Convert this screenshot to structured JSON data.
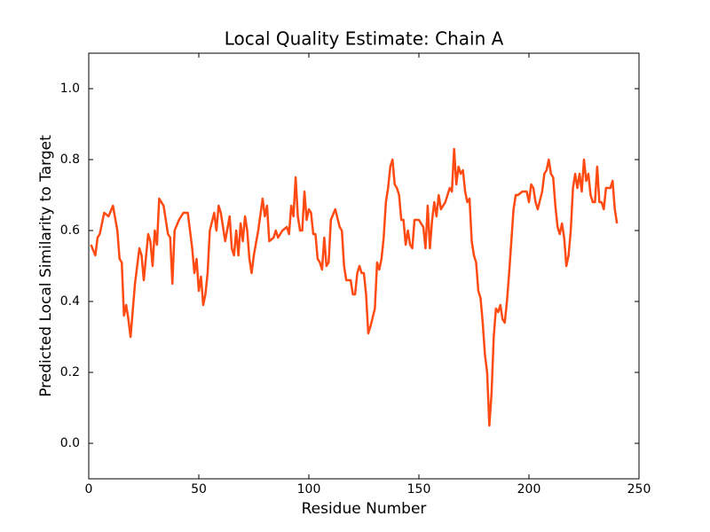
{
  "chart_data": {
    "type": "line",
    "title": "Local Quality Estimate: Chain A",
    "xlabel": "Residue Number",
    "ylabel": "Predicted Local Similarity to Target",
    "xlim": [
      0,
      250
    ],
    "xticks": [
      0,
      50,
      100,
      150,
      200,
      250
    ],
    "ylim": [
      -0.1,
      1.1
    ],
    "yticks": [
      {
        "value": 0,
        "label": "0.0"
      },
      0.2,
      0.4,
      0.6,
      0.8,
      {
        "value": 1,
        "label": "1.0"
      }
    ],
    "series": [
      {
        "name": "Chain A",
        "color": "#ff4a12",
        "x": [
          1,
          3,
          4,
          5,
          7,
          9,
          11,
          13,
          14,
          15,
          16,
          17,
          18,
          19,
          21,
          23,
          24,
          25,
          27,
          28,
          29,
          30,
          31,
          32,
          34,
          36,
          37,
          38,
          39,
          41,
          43,
          45,
          47,
          48,
          49,
          50,
          51,
          52,
          53,
          54,
          55,
          57,
          58,
          59,
          60,
          62,
          64,
          65,
          66,
          67,
          68,
          69,
          70,
          71,
          72,
          73,
          74,
          75,
          77,
          79,
          80,
          81,
          82,
          84,
          85,
          86,
          88,
          90,
          91,
          92,
          93,
          94,
          95,
          96,
          97,
          98,
          99,
          100,
          101,
          102,
          103,
          104,
          105,
          106,
          107,
          108,
          109,
          110,
          112,
          114,
          115,
          116,
          117,
          119,
          120,
          121,
          122,
          123,
          124,
          125,
          126,
          127,
          128,
          130,
          131,
          132,
          133,
          134,
          135,
          136,
          137,
          138,
          139,
          140,
          141,
          142,
          143,
          144,
          145,
          146,
          147,
          148,
          150,
          152,
          153,
          154,
          155,
          156,
          157,
          158,
          159,
          160,
          162,
          164,
          165,
          166,
          167,
          168,
          169,
          170,
          171,
          172,
          173,
          174,
          175,
          176,
          177,
          178,
          179,
          180,
          181,
          182,
          183,
          184,
          185,
          186,
          187,
          188,
          189,
          190,
          191,
          192,
          193,
          194,
          195,
          197,
          199,
          200,
          201,
          202,
          203,
          204,
          206,
          207,
          208,
          209,
          210,
          211,
          212,
          213,
          214,
          215,
          216,
          217,
          218,
          219,
          220,
          221,
          222,
          223,
          224,
          225,
          226,
          227,
          228,
          229,
          230,
          231,
          232,
          233,
          234,
          235,
          236,
          237,
          238,
          239,
          240
        ],
        "values": [
          0.56,
          0.53,
          0.58,
          0.59,
          0.65,
          0.64,
          0.67,
          0.6,
          0.52,
          0.51,
          0.36,
          0.39,
          0.35,
          0.3,
          0.45,
          0.55,
          0.53,
          0.46,
          0.59,
          0.57,
          0.5,
          0.6,
          0.56,
          0.69,
          0.67,
          0.59,
          0.58,
          0.45,
          0.6,
          0.63,
          0.65,
          0.65,
          0.55,
          0.48,
          0.52,
          0.43,
          0.47,
          0.39,
          0.42,
          0.48,
          0.6,
          0.65,
          0.6,
          0.67,
          0.65,
          0.57,
          0.64,
          0.55,
          0.53,
          0.6,
          0.53,
          0.62,
          0.57,
          0.64,
          0.6,
          0.52,
          0.48,
          0.53,
          0.6,
          0.69,
          0.64,
          0.67,
          0.57,
          0.58,
          0.6,
          0.58,
          0.6,
          0.61,
          0.59,
          0.67,
          0.64,
          0.75,
          0.64,
          0.6,
          0.6,
          0.71,
          0.63,
          0.66,
          0.65,
          0.59,
          0.59,
          0.52,
          0.51,
          0.49,
          0.58,
          0.5,
          0.51,
          0.63,
          0.66,
          0.61,
          0.6,
          0.5,
          0.46,
          0.46,
          0.42,
          0.42,
          0.48,
          0.5,
          0.48,
          0.48,
          0.42,
          0.31,
          0.33,
          0.38,
          0.51,
          0.49,
          0.52,
          0.58,
          0.68,
          0.72,
          0.78,
          0.8,
          0.73,
          0.72,
          0.7,
          0.63,
          0.63,
          0.56,
          0.6,
          0.56,
          0.55,
          0.63,
          0.63,
          0.61,
          0.55,
          0.67,
          0.55,
          0.63,
          0.68,
          0.64,
          0.7,
          0.66,
          0.68,
          0.72,
          0.71,
          0.83,
          0.73,
          0.78,
          0.76,
          0.77,
          0.71,
          0.68,
          0.69,
          0.57,
          0.53,
          0.51,
          0.43,
          0.41,
          0.34,
          0.25,
          0.2,
          0.05,
          0.14,
          0.3,
          0.38,
          0.37,
          0.39,
          0.35,
          0.34,
          0.4,
          0.48,
          0.57,
          0.66,
          0.7,
          0.7,
          0.71,
          0.71,
          0.68,
          0.73,
          0.72,
          0.68,
          0.66,
          0.71,
          0.76,
          0.77,
          0.8,
          0.76,
          0.75,
          0.67,
          0.61,
          0.59,
          0.62,
          0.58,
          0.5,
          0.53,
          0.6,
          0.72,
          0.76,
          0.72,
          0.76,
          0.71,
          0.8,
          0.74,
          0.76,
          0.7,
          0.68,
          0.68,
          0.78,
          0.68,
          0.68,
          0.66,
          0.72,
          0.72,
          0.72,
          0.74,
          0.66,
          0.62
        ]
      }
    ]
  }
}
